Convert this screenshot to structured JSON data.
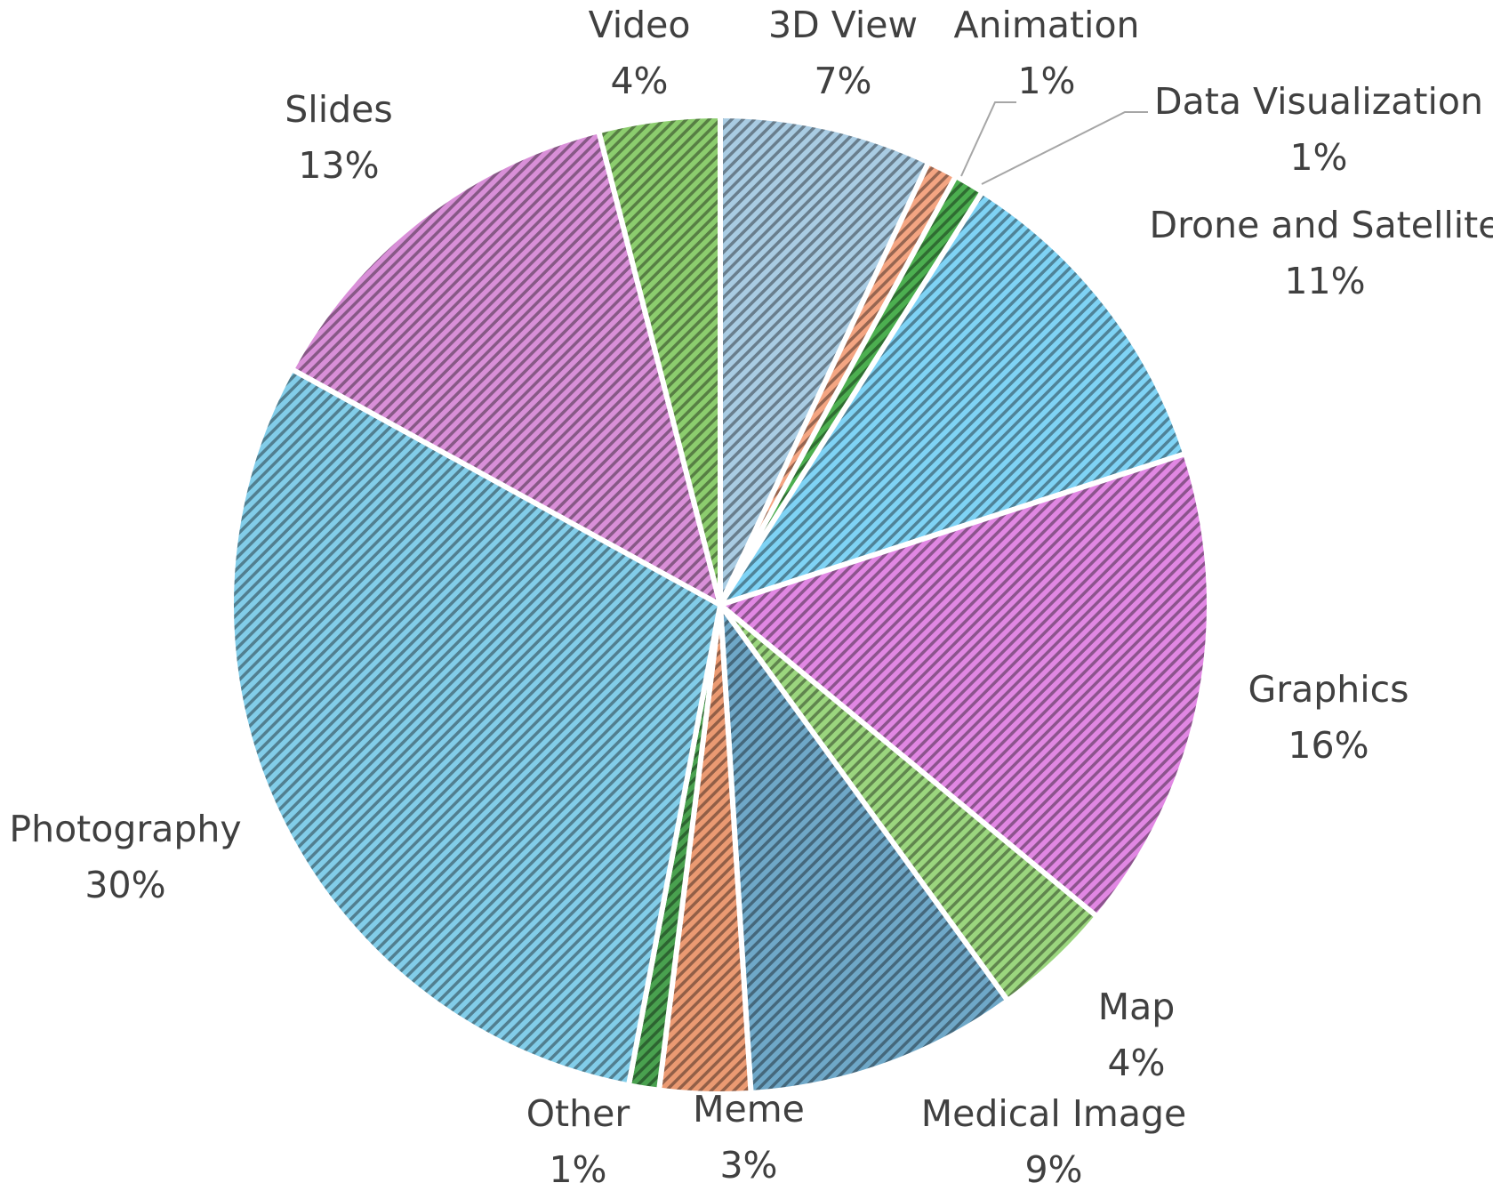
{
  "chart_data": {
    "type": "pie",
    "title": "",
    "start_angle_deg": 0,
    "direction": "clockwise",
    "slices": [
      {
        "label": "3D View",
        "value": 7,
        "value_label": "7%",
        "color": "#a9cce3",
        "pattern": "diagonal"
      },
      {
        "label": "Animation",
        "value": 1,
        "value_label": "1%",
        "color": "#f4a582",
        "pattern": "diagonal"
      },
      {
        "label": "Data Visualization",
        "value": 1,
        "value_label": "1%",
        "color": "#4caf50",
        "pattern": "diagonal"
      },
      {
        "label": "Drone and Satellite",
        "value": 11,
        "value_label": "11%",
        "color": "#7fd3f5",
        "pattern": "diagonal"
      },
      {
        "label": "Graphics",
        "value": 16,
        "value_label": "16%",
        "color": "#e187e3",
        "pattern": "diagonal"
      },
      {
        "label": "Map",
        "value": 4,
        "value_label": "4%",
        "color": "#9bd67e",
        "pattern": "diagonal"
      },
      {
        "label": "Medical Image",
        "value": 9,
        "value_label": "9%",
        "color": "#6fa8c8",
        "pattern": "diagonal"
      },
      {
        "label": "Meme",
        "value": 3,
        "value_label": "3%",
        "color": "#eb9a72",
        "pattern": "diagonal"
      },
      {
        "label": "Other",
        "value": 1,
        "value_label": "1%",
        "color": "#49a14f",
        "pattern": "diagonal"
      },
      {
        "label": "Photography",
        "value": 30,
        "value_label": "30%",
        "color": "#82cde9",
        "pattern": "diagonal"
      },
      {
        "label": "Slides",
        "value": 13,
        "value_label": "13%",
        "color": "#d98fd8",
        "pattern": "diagonal"
      },
      {
        "label": "Video",
        "value": 4,
        "value_label": "4%",
        "color": "#8ccd6e",
        "pattern": "diagonal"
      }
    ]
  }
}
